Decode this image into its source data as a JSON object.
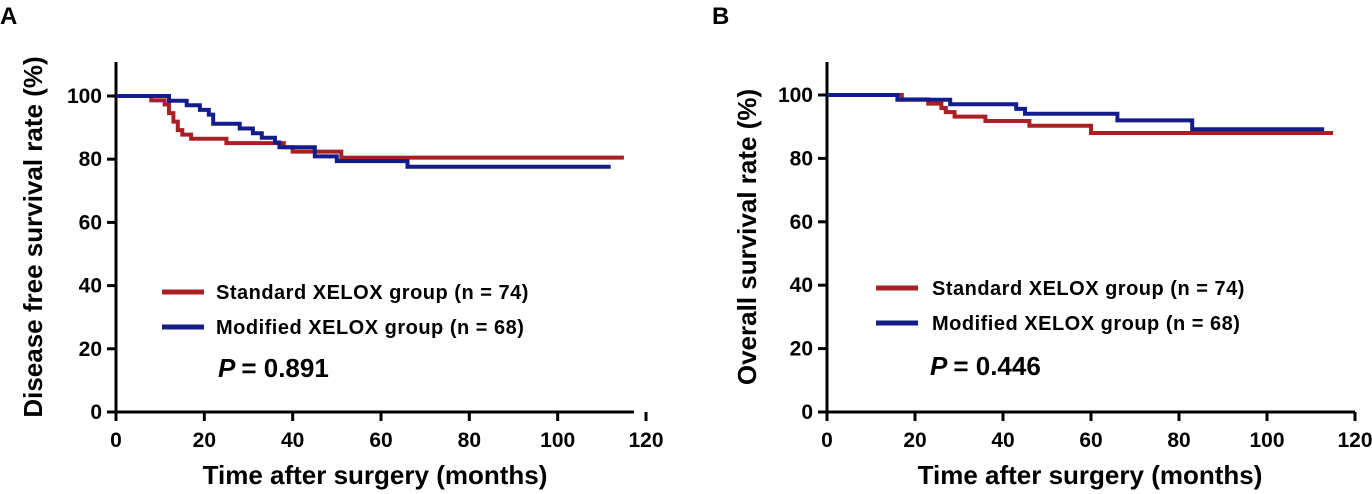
{
  "chart_data": [
    {
      "type": "line",
      "step": true,
      "panel_label": "A",
      "xlabel": "Time after surgery (months)",
      "ylabel": "Disease free survival rate (%)",
      "xlim": [
        0,
        120
      ],
      "ylim": [
        0,
        110
      ],
      "xticks": [
        0,
        20,
        40,
        60,
        80,
        100,
        120
      ],
      "yticks": [
        0,
        20,
        40,
        60,
        80,
        100
      ],
      "grid": false,
      "legend_position": "lower-middle",
      "p_label": "P",
      "p_value": "= 0.891",
      "series": [
        {
          "name": "Standard XELOX group (n = 74)",
          "color": "#A91F24",
          "points": [
            [
              0,
              100
            ],
            [
              8,
              100
            ],
            [
              8,
              98.6
            ],
            [
              11,
              98.6
            ],
            [
              11,
              97.3
            ],
            [
              12,
              97.3
            ],
            [
              12,
              94.6
            ],
            [
              13,
              94.6
            ],
            [
              13,
              91.9
            ],
            [
              14,
              91.9
            ],
            [
              14,
              89.2
            ],
            [
              15,
              89.2
            ],
            [
              15,
              87.8
            ],
            [
              17,
              87.8
            ],
            [
              17,
              86.5
            ],
            [
              25,
              86.5
            ],
            [
              25,
              85.1
            ],
            [
              38,
              85.1
            ],
            [
              38,
              83.8
            ],
            [
              40,
              83.8
            ],
            [
              40,
              82.4
            ],
            [
              51,
              82.4
            ],
            [
              51,
              80.5
            ],
            [
              115,
              80.5
            ]
          ]
        },
        {
          "name": "Modified XELOX group (n = 68)",
          "color": "#121C8A",
          "points": [
            [
              0,
              100
            ],
            [
              12,
              100
            ],
            [
              12,
              98.5
            ],
            [
              16,
              98.5
            ],
            [
              16,
              97.1
            ],
            [
              19,
              97.1
            ],
            [
              19,
              95.6
            ],
            [
              21,
              95.6
            ],
            [
              21,
              94.1
            ],
            [
              22,
              94.1
            ],
            [
              22,
              91.2
            ],
            [
              28,
              91.2
            ],
            [
              28,
              89.7
            ],
            [
              31,
              89.7
            ],
            [
              31,
              88.2
            ],
            [
              33,
              88.2
            ],
            [
              33,
              86.8
            ],
            [
              36,
              86.8
            ],
            [
              36,
              85.3
            ],
            [
              37,
              85.3
            ],
            [
              37,
              83.8
            ],
            [
              45,
              83.8
            ],
            [
              45,
              80.9
            ],
            [
              50,
              80.9
            ],
            [
              50,
              79.4
            ],
            [
              66,
              79.4
            ],
            [
              66,
              77.6
            ],
            [
              112,
              77.6
            ]
          ]
        }
      ]
    },
    {
      "type": "line",
      "step": true,
      "panel_label": "B",
      "xlabel": "Time after surgery (months)",
      "ylabel": "Overall survival rate (%)",
      "xlim": [
        0,
        120
      ],
      "ylim": [
        0,
        110
      ],
      "xticks": [
        0,
        20,
        40,
        60,
        80,
        100,
        120
      ],
      "yticks": [
        0,
        20,
        40,
        60,
        80,
        100
      ],
      "grid": false,
      "legend_position": "lower-middle",
      "p_label": "P",
      "p_value": "= 0.446",
      "series": [
        {
          "name": "Standard XELOX group (n = 74)",
          "color": "#A91F24",
          "points": [
            [
              0,
              100
            ],
            [
              17,
              100
            ],
            [
              17,
              98.6
            ],
            [
              23,
              98.6
            ],
            [
              23,
              97.3
            ],
            [
              26,
              97.3
            ],
            [
              26,
              95.9
            ],
            [
              27,
              95.9
            ],
            [
              27,
              94.6
            ],
            [
              29,
              94.6
            ],
            [
              29,
              93.2
            ],
            [
              36,
              93.2
            ],
            [
              36,
              91.8
            ],
            [
              46,
              91.8
            ],
            [
              46,
              90.3
            ],
            [
              60,
              90.3
            ],
            [
              60,
              88
            ],
            [
              115,
              88
            ]
          ]
        },
        {
          "name": "Modified XELOX group (n = 68)",
          "color": "#121C8A",
          "points": [
            [
              0,
              100
            ],
            [
              16,
              100
            ],
            [
              16,
              98.5
            ],
            [
              28,
              98.5
            ],
            [
              28,
              97.1
            ],
            [
              43,
              97.1
            ],
            [
              43,
              95.6
            ],
            [
              45,
              95.6
            ],
            [
              45,
              94.1
            ],
            [
              66,
              94.1
            ],
            [
              66,
              92
            ],
            [
              83,
              92
            ],
            [
              83,
              89.2
            ],
            [
              113,
              89.2
            ]
          ]
        }
      ]
    }
  ]
}
